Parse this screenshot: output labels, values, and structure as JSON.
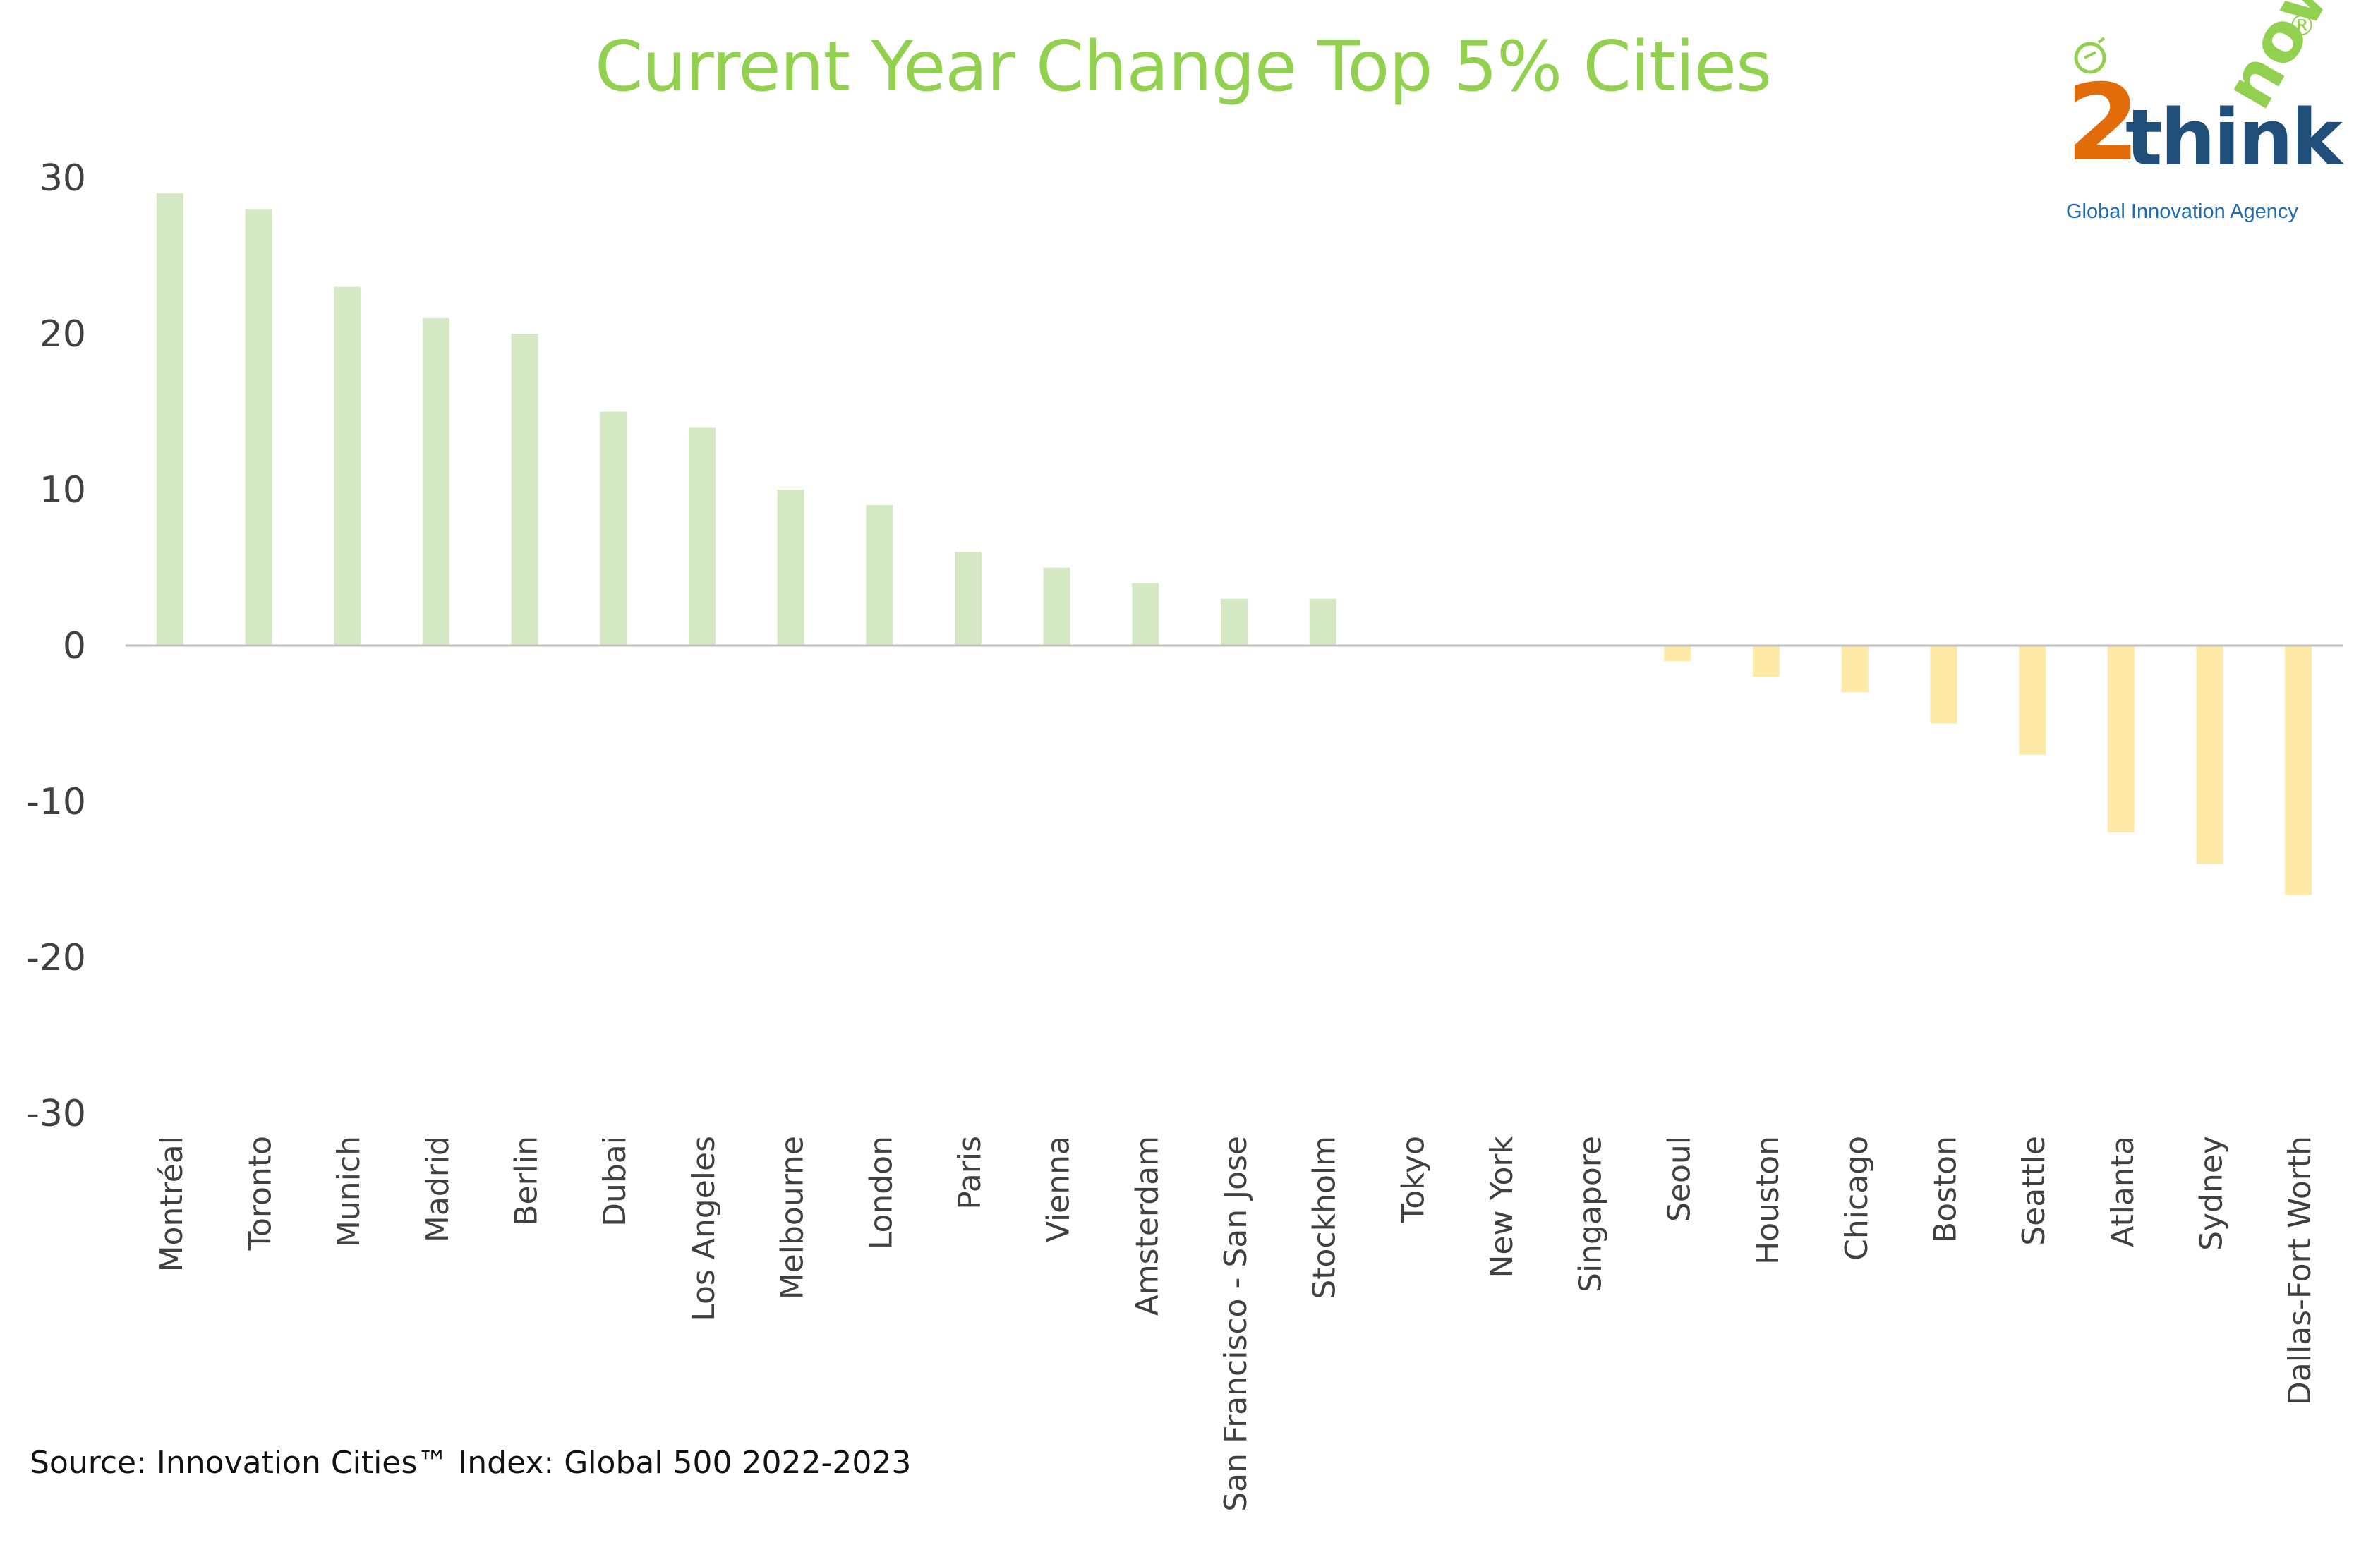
{
  "chart_data": {
    "type": "bar",
    "title": "Current Year Change Top 5% Cities",
    "xlabel": "",
    "ylabel": "",
    "ylim": [
      -30,
      30
    ],
    "yticks": [
      30,
      20,
      10,
      0,
      -10,
      -20,
      -30
    ],
    "grid": false,
    "categories": [
      "Montréal",
      "Toronto",
      "Munich",
      "Madrid",
      "Berlin",
      "Dubai",
      "Los Angeles",
      "Melbourne",
      "London",
      "Paris",
      "Vienna",
      "Amsterdam",
      "San Francisco - San Jose",
      "Stockholm",
      "Tokyo",
      "New York",
      "Singapore",
      "Seoul",
      "Houston",
      "Chicago",
      "Boston",
      "Seattle",
      "Atlanta",
      "Sydney",
      "Dallas-Fort Worth"
    ],
    "values": [
      29,
      28,
      23,
      21,
      20,
      15,
      14,
      10,
      9,
      6,
      5,
      4,
      3,
      3,
      0,
      0,
      0,
      -1,
      -2,
      -3,
      -5,
      -7,
      -12,
      -14,
      -16
    ],
    "colors": {
      "positive": "#d4e8c4",
      "negative": "#ffe9a6",
      "axis": "#bfbfbf",
      "tick_text": "#404040",
      "title": "#92d050"
    }
  },
  "source": "Source: Innovation Cities™ Index: Global 500 2022-2023",
  "logo": {
    "two": "2",
    "think": "think",
    "now": "now",
    "registered": "®",
    "tagline": "Global Innovation Agency"
  }
}
